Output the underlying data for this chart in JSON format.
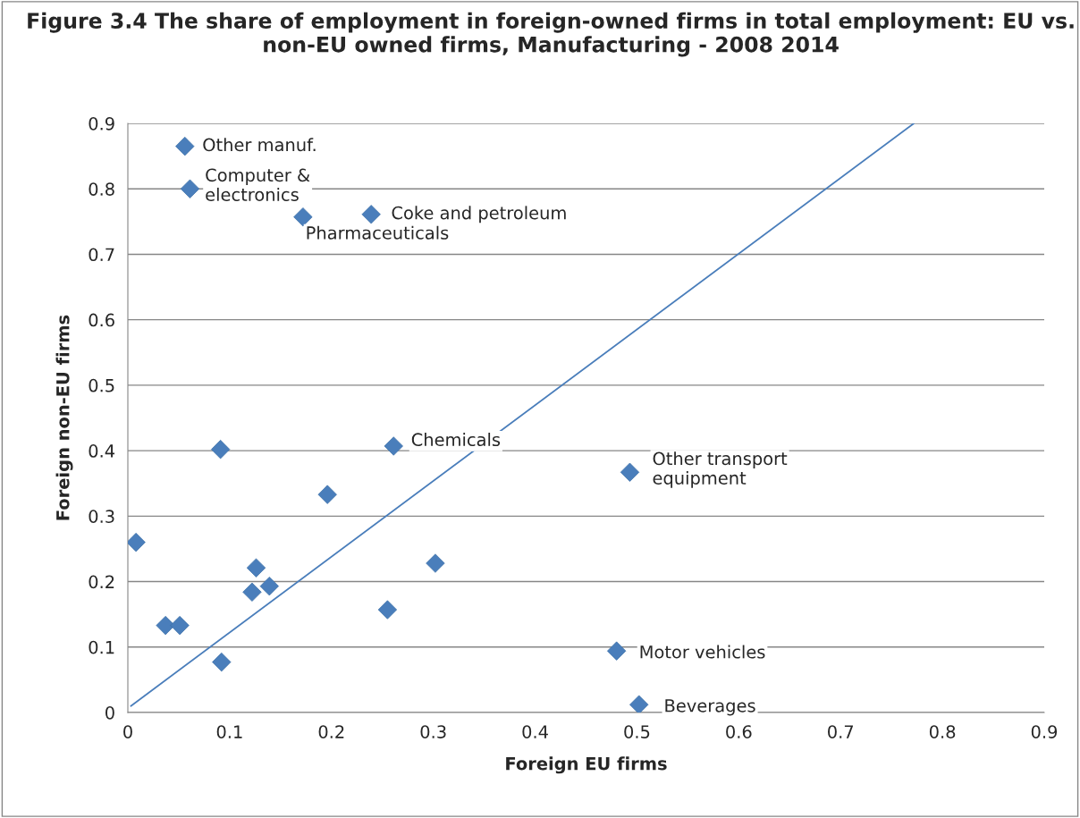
{
  "chart_data": {
    "type": "scatter",
    "title": "Figure 3.4 The share of employment in foreign-owned firms in total employment: EU vs. non-EU owned firms, Manufacturing - 2008 2014",
    "xlabel": "Foreign EU firms",
    "ylabel": "Foreign non-EU firms",
    "series": [
      {
        "color": "#4a7ebb",
        "marker": "diamond",
        "x": [
          0.056,
          0.061,
          0.172,
          0.239,
          0.261,
          0.493,
          0.48,
          0.502,
          0.091,
          0.196,
          0.008,
          0.126,
          0.122,
          0.139,
          0.302,
          0.255,
          0.037,
          0.051,
          0.092
        ],
        "values": [
          0.865,
          0.8,
          0.757,
          0.761,
          0.407,
          0.367,
          0.094,
          0.012,
          0.402,
          0.333,
          0.26,
          0.221,
          0.184,
          0.193,
          0.228,
          0.157,
          0.133,
          0.133,
          0.077
        ]
      },
      {
        "type": "line",
        "color": "#4a7ebb",
        "marker": "none",
        "x": [
          0.003,
          0.772
        ],
        "values": [
          0.01,
          0.9
        ]
      }
    ],
    "annotations": [
      {
        "text": "Other manuf.",
        "x": 0.056,
        "y": 0.865
      },
      {
        "text": "Computer &\nelectronics",
        "x": 0.061,
        "y": 0.8
      },
      {
        "text": "Pharmaceuticals",
        "x": 0.172,
        "y": 0.757
      },
      {
        "text": "Coke and petroleum",
        "x": 0.239,
        "y": 0.761
      },
      {
        "text": "Chemicals",
        "x": 0.261,
        "y": 0.407
      },
      {
        "text": "Other transport\nequipment",
        "x": 0.493,
        "y": 0.367
      },
      {
        "text": "Motor vehicles",
        "x": 0.48,
        "y": 0.094
      },
      {
        "text": "Beverages",
        "x": 0.502,
        "y": 0.012
      }
    ],
    "xlim": [
      0,
      0.9
    ],
    "xticks": [
      0,
      0.1,
      0.2,
      0.3,
      0.4,
      0.5,
      0.6,
      0.7,
      0.8,
      0.9
    ],
    "ylim": [
      0,
      0.9
    ],
    "yticks": [
      0,
      0.1,
      0.2,
      0.3,
      0.4,
      0.5,
      0.6,
      0.7,
      0.8,
      0.9
    ],
    "grid": "y",
    "legend": false
  }
}
